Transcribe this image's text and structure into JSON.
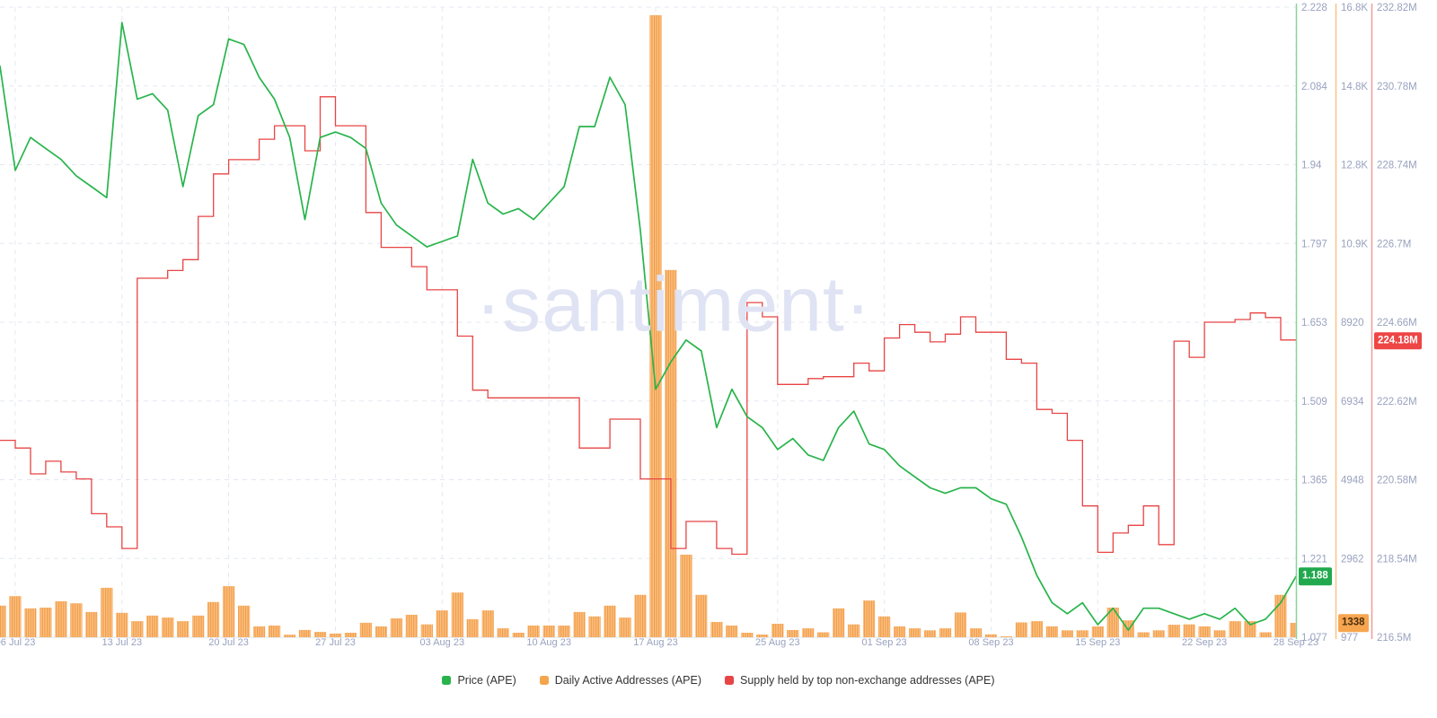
{
  "watermark": "·santiment·",
  "badges": {
    "price": {
      "text": "1.188",
      "value": 1.188
    },
    "daa": {
      "text": "1338",
      "value": 1338
    },
    "supply": {
      "text": "224.18M",
      "value": 224.18
    }
  },
  "axes": {
    "price": {
      "color": "#28b44b",
      "line_color": "#8bd29c",
      "min": 1.077,
      "max": 2.228,
      "ticks": [
        "2.228",
        "2.084",
        "1.94",
        "1.797",
        "1.653",
        "1.509",
        "1.365",
        "1.221",
        "1.077"
      ]
    },
    "daa": {
      "color": "#f5a54e",
      "line_color": "#f8c288",
      "min": 977,
      "max": 16800,
      "ticks": [
        "16.8K",
        "14.8K",
        "12.8K",
        "10.9K",
        "8920",
        "6934",
        "4948",
        "2962",
        "977"
      ]
    },
    "supply": {
      "color": "#e84444",
      "line_color": "#f29b97",
      "min": 216.5,
      "max": 232.82,
      "ticks": [
        "232.82M",
        "230.78M",
        "228.74M",
        "226.7M",
        "224.66M",
        "222.62M",
        "220.58M",
        "218.54M",
        "216.5M"
      ]
    }
  },
  "chart_data": {
    "type": "mixed",
    "frequency": "daily",
    "start_date": "2023-07-05",
    "end_date": "2023-09-28",
    "x_ticks": [
      {
        "label": "06 Jul 23",
        "day": 1
      },
      {
        "label": "13 Jul 23",
        "day": 8
      },
      {
        "label": "20 Jul 23",
        "day": 15
      },
      {
        "label": "27 Jul 23",
        "day": 22
      },
      {
        "label": "03 Aug 23",
        "day": 29
      },
      {
        "label": "10 Aug 23",
        "day": 36
      },
      {
        "label": "17 Aug 23",
        "day": 43
      },
      {
        "label": "25 Aug 23",
        "day": 51
      },
      {
        "label": "01 Sep 23",
        "day": 58
      },
      {
        "label": "08 Sep 23",
        "day": 65
      },
      {
        "label": "15 Sep 23",
        "day": 72
      },
      {
        "label": "22 Sep 23",
        "day": 79
      },
      {
        "label": "28 Sep 23",
        "day": 85
      }
    ],
    "dates": [
      "2023-07-05",
      "2023-07-06",
      "2023-07-07",
      "2023-07-08",
      "2023-07-09",
      "2023-07-10",
      "2023-07-11",
      "2023-07-12",
      "2023-07-13",
      "2023-07-14",
      "2023-07-15",
      "2023-07-16",
      "2023-07-17",
      "2023-07-18",
      "2023-07-19",
      "2023-07-20",
      "2023-07-21",
      "2023-07-22",
      "2023-07-23",
      "2023-07-24",
      "2023-07-25",
      "2023-07-26",
      "2023-07-27",
      "2023-07-28",
      "2023-07-29",
      "2023-07-30",
      "2023-07-31",
      "2023-08-01",
      "2023-08-02",
      "2023-08-03",
      "2023-08-04",
      "2023-08-05",
      "2023-08-06",
      "2023-08-07",
      "2023-08-08",
      "2023-08-09",
      "2023-08-10",
      "2023-08-11",
      "2023-08-12",
      "2023-08-13",
      "2023-08-14",
      "2023-08-15",
      "2023-08-16",
      "2023-08-17",
      "2023-08-18",
      "2023-08-19",
      "2023-08-20",
      "2023-08-21",
      "2023-08-22",
      "2023-08-23",
      "2023-08-24",
      "2023-08-25",
      "2023-08-26",
      "2023-08-27",
      "2023-08-28",
      "2023-08-29",
      "2023-08-30",
      "2023-08-31",
      "2023-09-01",
      "2023-09-02",
      "2023-09-03",
      "2023-09-04",
      "2023-09-05",
      "2023-09-06",
      "2023-09-07",
      "2023-09-08",
      "2023-09-09",
      "2023-09-10",
      "2023-09-11",
      "2023-09-12",
      "2023-09-13",
      "2023-09-14",
      "2023-09-15",
      "2023-09-16",
      "2023-09-17",
      "2023-09-18",
      "2023-09-19",
      "2023-09-20",
      "2023-09-21",
      "2023-09-22",
      "2023-09-23",
      "2023-09-24",
      "2023-09-25",
      "2023-09-26",
      "2023-09-27",
      "2023-09-28"
    ],
    "series": [
      {
        "name": "Price (APE)",
        "type": "line",
        "color": "#28b44b",
        "axis": "price",
        "last_value": 1.188,
        "values": [
          2.12,
          1.93,
          1.99,
          1.97,
          1.95,
          1.92,
          1.9,
          1.88,
          2.2,
          2.06,
          2.07,
          2.04,
          1.9,
          2.03,
          2.05,
          2.17,
          2.16,
          2.1,
          2.06,
          1.99,
          1.84,
          1.99,
          2.0,
          1.99,
          1.97,
          1.87,
          1.83,
          1.81,
          1.79,
          1.8,
          1.81,
          1.95,
          1.87,
          1.85,
          1.86,
          1.84,
          1.87,
          1.9,
          2.01,
          2.01,
          2.1,
          2.05,
          1.82,
          1.53,
          1.58,
          1.62,
          1.6,
          1.46,
          1.53,
          1.48,
          1.46,
          1.42,
          1.44,
          1.41,
          1.4,
          1.46,
          1.49,
          1.43,
          1.42,
          1.39,
          1.37,
          1.35,
          1.34,
          1.35,
          1.35,
          1.33,
          1.32,
          1.26,
          1.19,
          1.14,
          1.12,
          1.14,
          1.1,
          1.13,
          1.09,
          1.13,
          1.13,
          1.12,
          1.11,
          1.12,
          1.11,
          1.13,
          1.1,
          1.11,
          1.14,
          1.188
        ]
      },
      {
        "name": "Daily Active Addresses (APE)",
        "type": "bar",
        "color": "#f5a54e",
        "axis": "daa",
        "last_value": 1338,
        "values": [
          1770,
          2010,
          1700,
          1720,
          1880,
          1830,
          1610,
          2220,
          1590,
          1380,
          1520,
          1470,
          1380,
          1520,
          1860,
          2260,
          1770,
          1250,
          1270,
          1040,
          1160,
          1110,
          1070,
          1090,
          1340,
          1250,
          1450,
          1540,
          1300,
          1650,
          2100,
          1430,
          1650,
          1200,
          1090,
          1270,
          1270,
          1270,
          1610,
          1500,
          1770,
          1470,
          2040,
          16600,
          10200,
          3050,
          2040,
          1360,
          1270,
          1090,
          1045,
          1315,
          1157,
          1200,
          1100,
          1700,
          1300,
          1900,
          1500,
          1250,
          1200,
          1150,
          1200,
          1600,
          1200,
          1050,
          1000,
          1350,
          1380,
          1250,
          1150,
          1150,
          1250,
          1720,
          1400,
          1100,
          1150,
          1290,
          1300,
          1250,
          1150,
          1380,
          1380,
          1100,
          2040,
          1338
        ]
      },
      {
        "name": "Supply held by top non-exchange addresses (APE)",
        "type": "step-line",
        "color": "#e84444",
        "axis": "supply",
        "unit": "M",
        "last_value": 224.18,
        "values": [
          221.6,
          221.4,
          220.73,
          221.06,
          220.78,
          220.6,
          219.7,
          219.36,
          218.8,
          225.8,
          225.8,
          226.0,
          226.28,
          227.4,
          228.5,
          228.87,
          228.87,
          229.4,
          229.75,
          229.75,
          229.1,
          230.5,
          229.75,
          229.75,
          227.5,
          226.6,
          226.6,
          226.1,
          225.5,
          225.5,
          224.3,
          222.9,
          222.7,
          222.7,
          222.7,
          222.7,
          222.7,
          222.7,
          221.4,
          221.4,
          222.15,
          222.15,
          220.6,
          220.6,
          218.8,
          219.5,
          219.5,
          218.8,
          218.65,
          225.17,
          224.8,
          223.05,
          223.05,
          223.2,
          223.25,
          223.25,
          223.6,
          223.4,
          224.25,
          224.6,
          224.4,
          224.15,
          224.35,
          224.8,
          224.4,
          224.4,
          223.7,
          223.6,
          222.4,
          222.3,
          221.6,
          219.9,
          218.7,
          219.2,
          219.4,
          219.9,
          218.9,
          224.17,
          223.75,
          224.66,
          224.66,
          224.73,
          224.9,
          224.78,
          224.2,
          224.18
        ]
      }
    ]
  },
  "colors": {
    "grid": "#e4e8f1",
    "baseline": "#e8ebf2",
    "tick_text": "#99a2bf",
    "bar_base": "#fbc083",
    "bar_stripe": "#f09a44",
    "watermark": "#dfe3f3"
  }
}
